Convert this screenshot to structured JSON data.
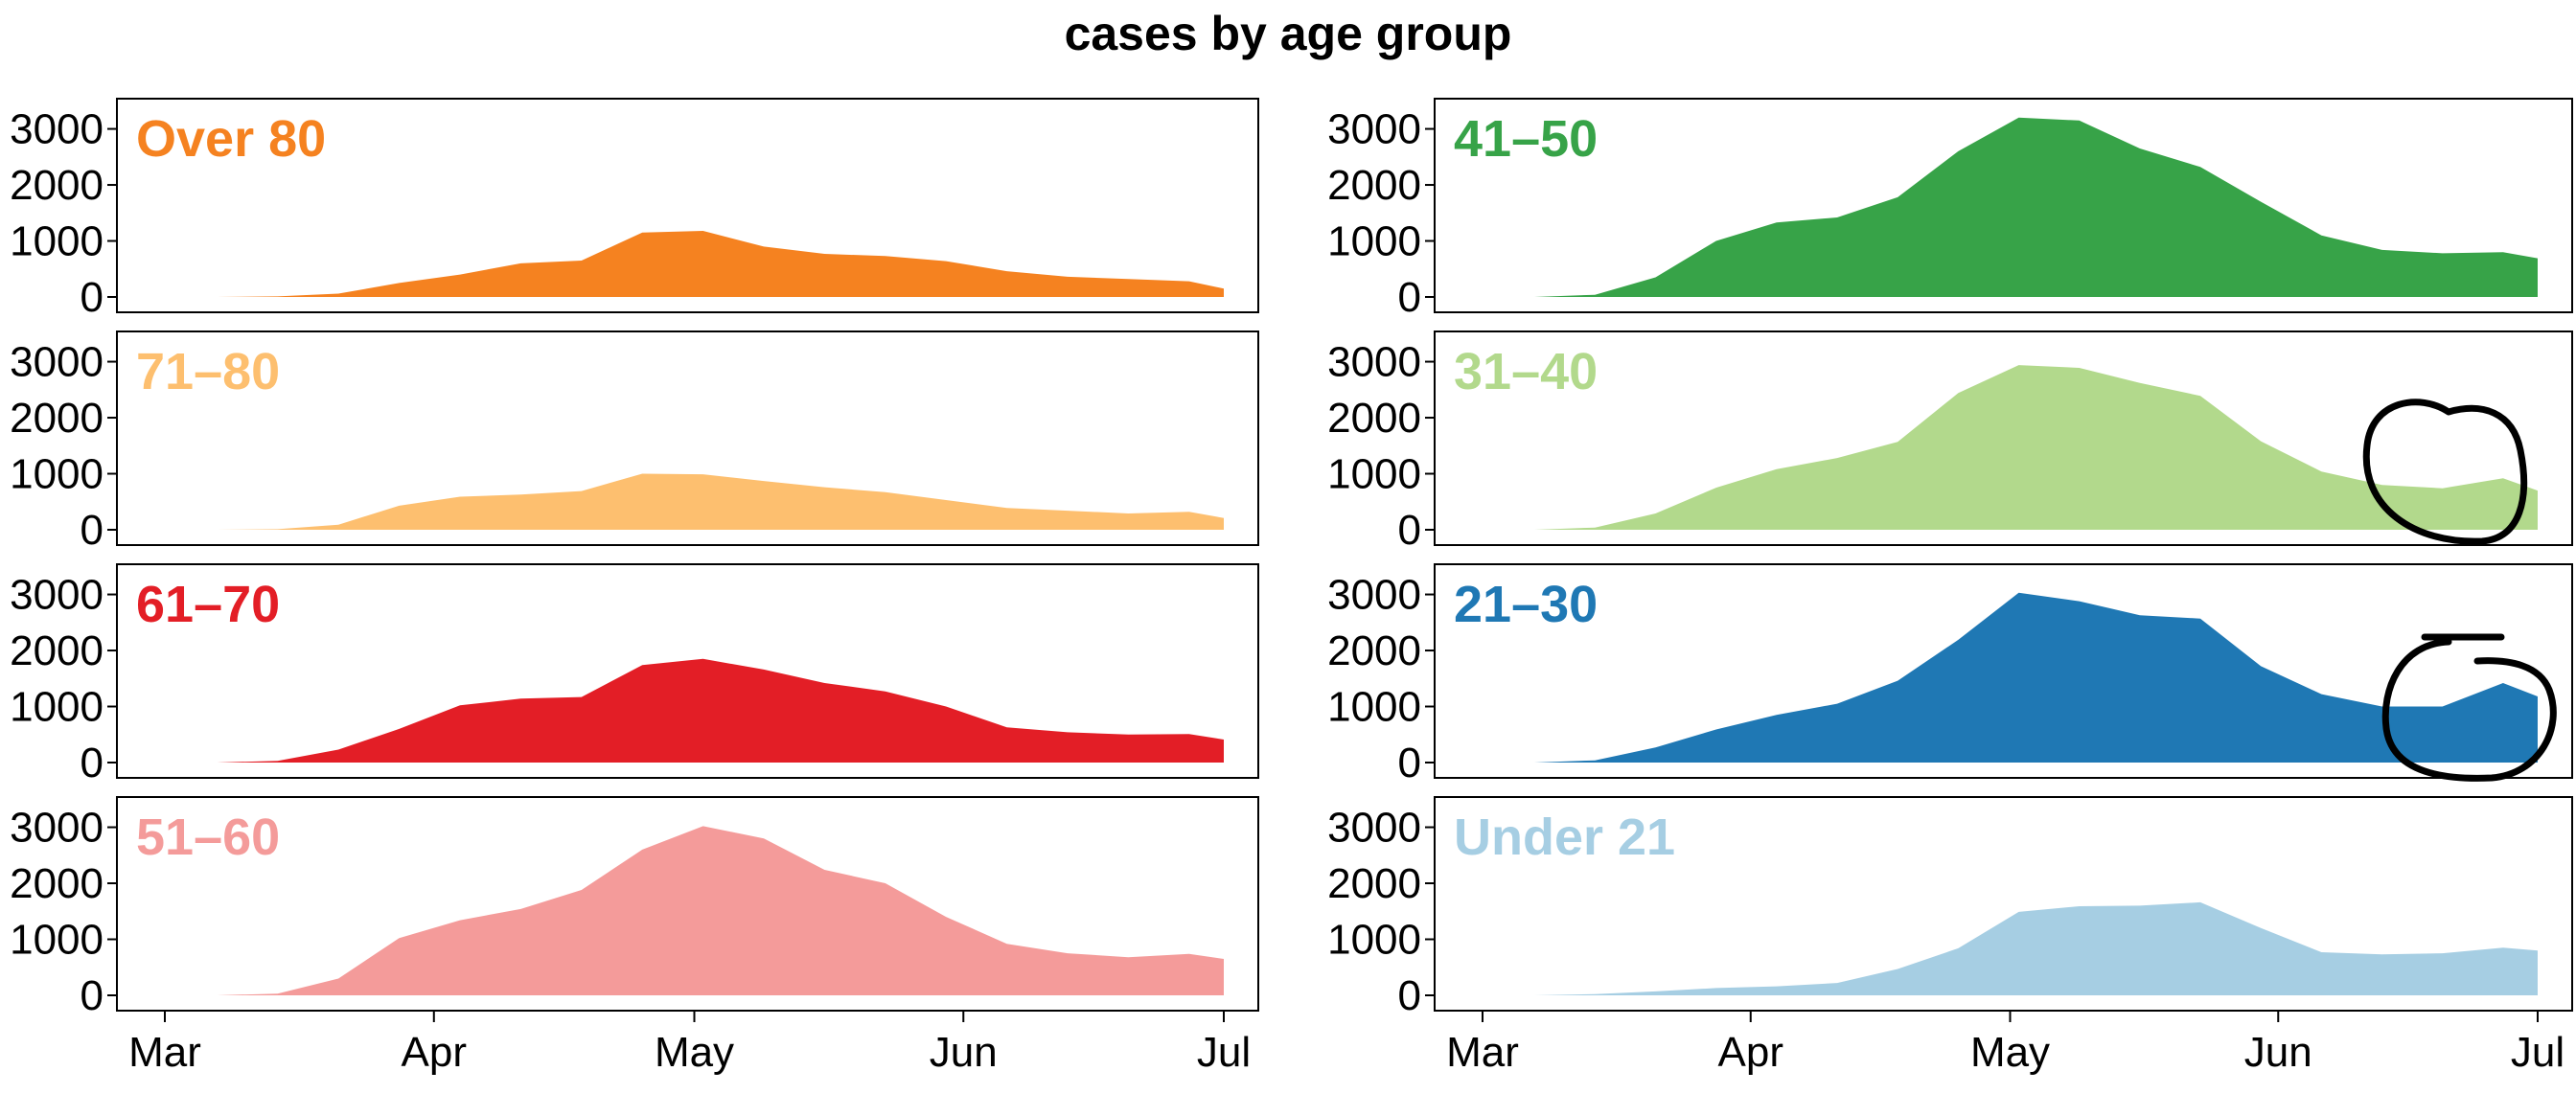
{
  "chart_data": {
    "type": "area",
    "title": "cases by age group",
    "layout": "small-multiples-4x2",
    "x_ticks": [
      "Mar",
      "Apr",
      "May",
      "Jun",
      "Jul"
    ],
    "y_ticks": [
      0,
      1000,
      2000,
      3000
    ],
    "ylim": [
      0,
      3300
    ],
    "grid": false,
    "x": [
      "2020-03-07",
      "2020-03-14",
      "2020-03-21",
      "2020-03-28",
      "2020-04-04",
      "2020-04-11",
      "2020-04-18",
      "2020-04-25",
      "2020-05-02",
      "2020-05-09",
      "2020-05-16",
      "2020-05-23",
      "2020-05-30",
      "2020-06-06",
      "2020-06-13",
      "2020-06-20",
      "2020-06-27",
      "2020-07-01"
    ],
    "series": [
      {
        "name": "Over 80",
        "color": "#f58220",
        "values": [
          0,
          10,
          60,
          250,
          400,
          600,
          650,
          1150,
          1180,
          900,
          770,
          730,
          640,
          460,
          360,
          320,
          280,
          150
        ]
      },
      {
        "name": "41–50",
        "color": "#37a348",
        "values": [
          0,
          40,
          350,
          1000,
          1330,
          1420,
          1780,
          2600,
          3200,
          3150,
          2650,
          2320,
          1700,
          1100,
          840,
          780,
          800,
          690
        ]
      },
      {
        "name": "71–80",
        "color": "#fdbf6f",
        "values": [
          0,
          10,
          90,
          430,
          590,
          630,
          690,
          1000,
          990,
          870,
          760,
          670,
          530,
          390,
          340,
          290,
          320,
          210
        ]
      },
      {
        "name": "31–40",
        "color": "#b2d98c",
        "values": [
          0,
          40,
          290,
          750,
          1080,
          1280,
          1570,
          2440,
          2940,
          2890,
          2620,
          2390,
          1580,
          1040,
          800,
          740,
          920,
          700
        ]
      },
      {
        "name": "61–70",
        "color": "#e31e26",
        "values": [
          0,
          30,
          230,
          600,
          1020,
          1140,
          1170,
          1740,
          1850,
          1660,
          1420,
          1270,
          1000,
          630,
          540,
          500,
          510,
          410
        ]
      },
      {
        "name": "21–30",
        "color": "#1f78b4",
        "values": [
          0,
          40,
          270,
          590,
          850,
          1050,
          1460,
          2190,
          3030,
          2880,
          2630,
          2570,
          1720,
          1220,
          1000,
          1000,
          1420,
          1180
        ]
      },
      {
        "name": "51–60",
        "color": "#f49b9a",
        "values": [
          0,
          30,
          300,
          1020,
          1340,
          1540,
          1880,
          2600,
          3020,
          2800,
          2240,
          2000,
          1400,
          920,
          750,
          680,
          740,
          650
        ]
      },
      {
        "name": "Under 21",
        "color": "#a6cee3",
        "values": [
          0,
          20,
          70,
          130,
          160,
          220,
          470,
          840,
          1490,
          1590,
          1600,
          1660,
          1200,
          770,
          730,
          750,
          850,
          800
        ]
      }
    ]
  }
}
